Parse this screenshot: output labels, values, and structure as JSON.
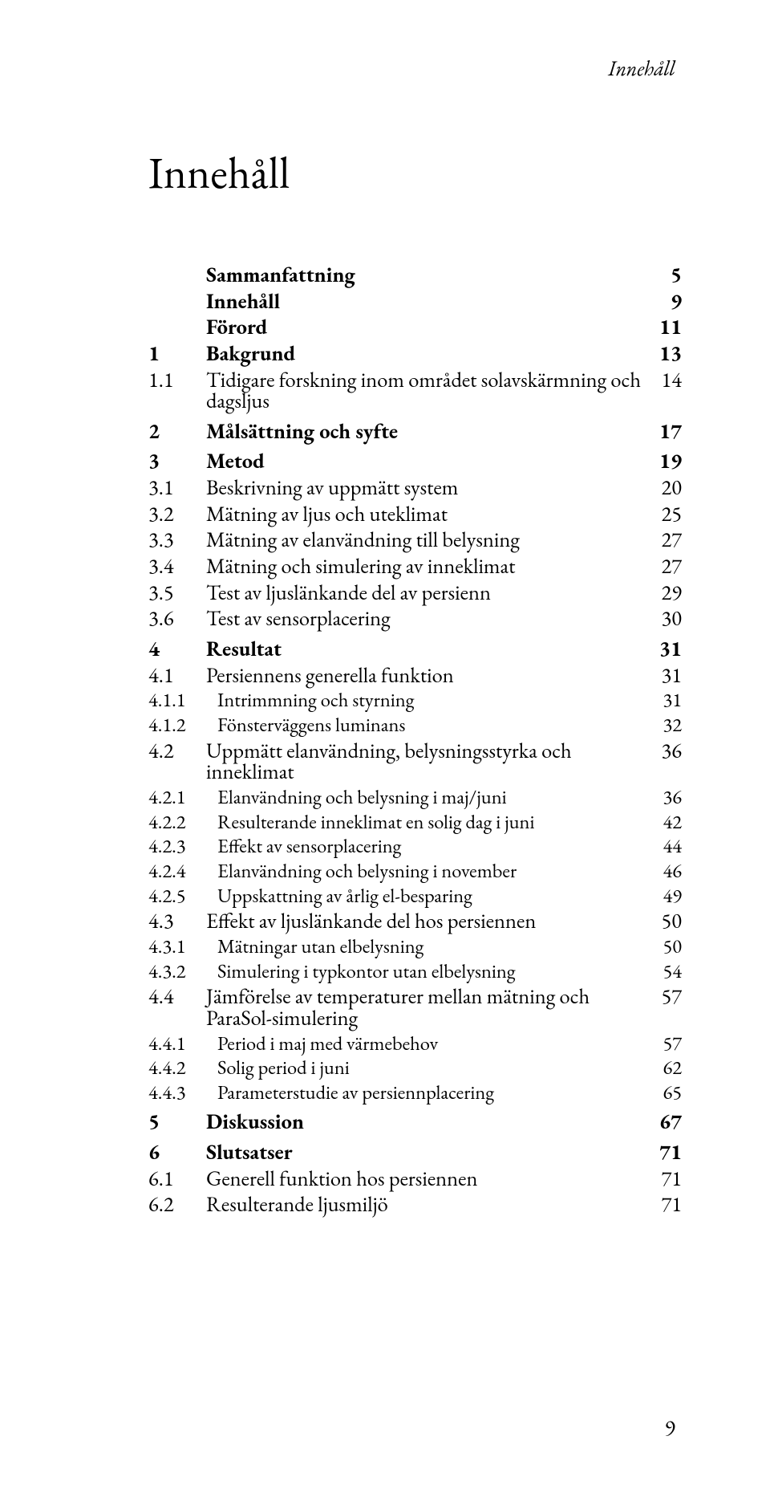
{
  "running_head": "Innehåll",
  "title": "Innehåll",
  "footer_page": "9",
  "toc": [
    {
      "level": 0,
      "num": "",
      "label": "Sammanfattning",
      "page": "5",
      "section_gap": false
    },
    {
      "level": 0,
      "num": "",
      "label": "Innehåll",
      "page": "9",
      "section_gap": false
    },
    {
      "level": 0,
      "num": "",
      "label": "Förord",
      "page": "11",
      "section_gap": false
    },
    {
      "level": 0,
      "num": "1",
      "label": "Bakgrund",
      "page": "13",
      "section_gap": false
    },
    {
      "level": 1,
      "num": "1.1",
      "label": "Tidigare forskning inom området solavskärmning och dagsljus",
      "page": "14"
    },
    {
      "level": 0,
      "num": "2",
      "label": "Målsättning och syfte",
      "page": "17",
      "section_gap": true
    },
    {
      "level": 0,
      "num": "3",
      "label": "Metod",
      "page": "19",
      "section_gap": true
    },
    {
      "level": 1,
      "num": "3.1",
      "label": "Beskrivning av uppmätt system",
      "page": "20"
    },
    {
      "level": 1,
      "num": "3.2",
      "label": "Mätning av ljus och uteklimat",
      "page": "25"
    },
    {
      "level": 1,
      "num": "3.3",
      "label": "Mätning av elanvändning till belysning",
      "page": "27"
    },
    {
      "level": 1,
      "num": "3.4",
      "label": "Mätning och simulering av inneklimat",
      "page": "27"
    },
    {
      "level": 1,
      "num": "3.5",
      "label": "Test av ljuslänkande del av persienn",
      "page": "29"
    },
    {
      "level": 1,
      "num": "3.6",
      "label": "Test av sensorplacering",
      "page": "30"
    },
    {
      "level": 0,
      "num": "4",
      "label": "Resultat",
      "page": "31",
      "section_gap": true
    },
    {
      "level": 1,
      "num": "4.1",
      "label": "Persiennens generella funktion",
      "page": "31"
    },
    {
      "level": 2,
      "num": "4.1.1",
      "label": "Intrimmning och styrning",
      "page": "31"
    },
    {
      "level": 2,
      "num": "4.1.2",
      "label": "Fönsterväggens luminans",
      "page": "32"
    },
    {
      "level": 1,
      "num": "4.2",
      "label": "Uppmätt elanvändning, belysningsstyrka och inneklimat",
      "page": "36"
    },
    {
      "level": 2,
      "num": "4.2.1",
      "label": "Elanvändning och belysning i maj/juni",
      "page": "36"
    },
    {
      "level": 2,
      "num": "4.2.2",
      "label": "Resulterande inneklimat en solig dag i juni",
      "page": "42"
    },
    {
      "level": 2,
      "num": "4.2.3",
      "label": "Effekt av sensorplacering",
      "page": "44"
    },
    {
      "level": 2,
      "num": "4.2.4",
      "label": "Elanvändning och belysning i november",
      "page": "46"
    },
    {
      "level": 2,
      "num": "4.2.5",
      "label": "Uppskattning av årlig el-besparing",
      "page": "49"
    },
    {
      "level": 1,
      "num": "4.3",
      "label": "Effekt av ljuslänkande del hos persiennen",
      "page": "50"
    },
    {
      "level": 2,
      "num": "4.3.1",
      "label": "Mätningar utan elbelysning",
      "page": "50"
    },
    {
      "level": 2,
      "num": "4.3.2",
      "label": "Simulering i typkontor utan elbelysning",
      "page": "54"
    },
    {
      "level": 1,
      "num": "4.4",
      "label": "Jämförelse av temperaturer mellan mätning och ParaSol-simulering",
      "page": "57"
    },
    {
      "level": 2,
      "num": "4.4.1",
      "label": "Period i maj med värmebehov",
      "page": "57"
    },
    {
      "level": 2,
      "num": "4.4.2",
      "label": "Solig period i juni",
      "page": "62"
    },
    {
      "level": 2,
      "num": "4.4.3",
      "label": "Parameterstudie av persiennplacering",
      "page": "65"
    },
    {
      "level": 0,
      "num": "5",
      "label": "Diskussion",
      "page": "67",
      "section_gap": true
    },
    {
      "level": 0,
      "num": "6",
      "label": "Slutsatser",
      "page": "71",
      "section_gap": true
    },
    {
      "level": 1,
      "num": "6.1",
      "label": "Generell funktion hos persiennen",
      "page": "71"
    },
    {
      "level": 1,
      "num": "6.2",
      "label": "Resulterande ljusmiljö",
      "page": "71"
    }
  ]
}
